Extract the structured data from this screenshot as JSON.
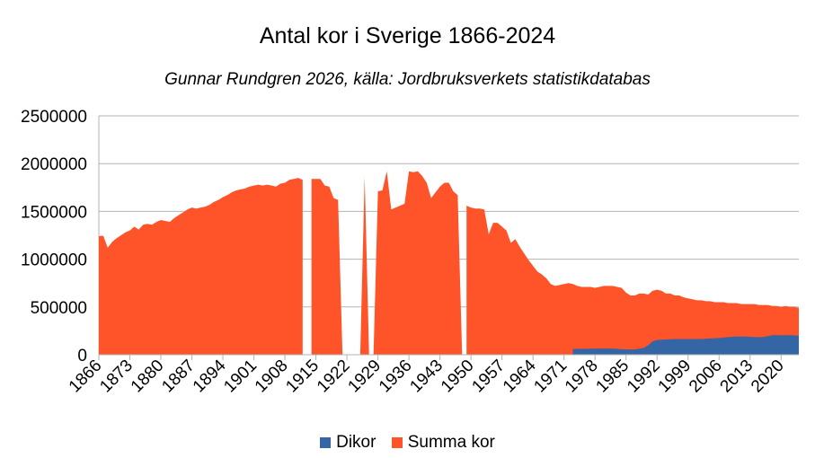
{
  "chart_data": {
    "type": "area",
    "title": "Antal kor i Sverige 1866-2024",
    "subtitle": "Gunnar Rundgren 2026, källa: Jordbruksverkets statistikdatabas",
    "xlabel": "",
    "ylabel": "",
    "ylim": [
      0,
      2500000
    ],
    "yticks": [
      "0",
      "500000",
      "1000000",
      "1500000",
      "2000000",
      "2500000"
    ],
    "xticks": [
      "1866",
      "1873",
      "1880",
      "1887",
      "1894",
      "1901",
      "1908",
      "1915",
      "1922",
      "1929",
      "1936",
      "1943",
      "1950",
      "1957",
      "1964",
      "1971",
      "1978",
      "1985",
      "1992",
      "1999",
      "2006",
      "2013",
      "2020"
    ],
    "x_range": [
      1866,
      2024
    ],
    "grid": true,
    "legend_position": "bottom",
    "series": [
      {
        "name": "Summa kor",
        "color": "#ff5429",
        "points": [
          [
            1866,
            1240000
          ],
          [
            1867,
            1245000
          ],
          [
            1868,
            1120000
          ],
          [
            1869,
            1180000
          ],
          [
            1870,
            1220000
          ],
          [
            1871,
            1250000
          ],
          [
            1872,
            1280000
          ],
          [
            1873,
            1300000
          ],
          [
            1874,
            1340000
          ],
          [
            1875,
            1310000
          ],
          [
            1876,
            1360000
          ],
          [
            1877,
            1370000
          ],
          [
            1878,
            1360000
          ],
          [
            1879,
            1390000
          ],
          [
            1880,
            1410000
          ],
          [
            1881,
            1400000
          ],
          [
            1882,
            1390000
          ],
          [
            1883,
            1430000
          ],
          [
            1884,
            1460000
          ],
          [
            1885,
            1490000
          ],
          [
            1886,
            1520000
          ],
          [
            1887,
            1540000
          ],
          [
            1888,
            1530000
          ],
          [
            1889,
            1540000
          ],
          [
            1890,
            1550000
          ],
          [
            1891,
            1570000
          ],
          [
            1892,
            1600000
          ],
          [
            1893,
            1620000
          ],
          [
            1894,
            1650000
          ],
          [
            1895,
            1670000
          ],
          [
            1896,
            1700000
          ],
          [
            1897,
            1720000
          ],
          [
            1898,
            1730000
          ],
          [
            1899,
            1740000
          ],
          [
            1900,
            1760000
          ],
          [
            1901,
            1770000
          ],
          [
            1902,
            1780000
          ],
          [
            1903,
            1770000
          ],
          [
            1904,
            1780000
          ],
          [
            1905,
            1770000
          ],
          [
            1906,
            1760000
          ],
          [
            1907,
            1790000
          ],
          [
            1908,
            1800000
          ],
          [
            1909,
            1830000
          ],
          [
            1910,
            1840000
          ],
          [
            1911,
            1850000
          ],
          [
            1912,
            1830000
          ],
          [
            1912,
            0
          ],
          [
            1913,
            0
          ],
          [
            1914,
            0
          ],
          [
            1914,
            1840000
          ],
          [
            1915,
            1840000
          ],
          [
            1916,
            1840000
          ],
          [
            1917,
            1770000
          ],
          [
            1918,
            1760000
          ],
          [
            1919,
            1640000
          ],
          [
            1920,
            1620000
          ],
          [
            1921,
            0
          ],
          [
            1925,
            0
          ],
          [
            1926,
            1860000
          ],
          [
            1927,
            0
          ],
          [
            1928,
            0
          ],
          [
            1929,
            1710000
          ],
          [
            1930,
            1720000
          ],
          [
            1931,
            1920000
          ],
          [
            1932,
            1520000
          ],
          [
            1933,
            1540000
          ],
          [
            1934,
            1560000
          ],
          [
            1935,
            1580000
          ],
          [
            1936,
            1920000
          ],
          [
            1937,
            1910000
          ],
          [
            1938,
            1920000
          ],
          [
            1939,
            1870000
          ],
          [
            1940,
            1800000
          ],
          [
            1941,
            1640000
          ],
          [
            1942,
            1700000
          ],
          [
            1943,
            1760000
          ],
          [
            1944,
            1800000
          ],
          [
            1945,
            1800000
          ],
          [
            1946,
            1710000
          ],
          [
            1947,
            1670000
          ],
          [
            1948,
            0
          ],
          [
            1949,
            0
          ],
          [
            1949,
            1560000
          ],
          [
            1950,
            1540000
          ],
          [
            1951,
            1530000
          ],
          [
            1952,
            1530000
          ],
          [
            1953,
            1520000
          ],
          [
            1954,
            1260000
          ],
          [
            1955,
            1380000
          ],
          [
            1956,
            1380000
          ],
          [
            1957,
            1340000
          ],
          [
            1958,
            1300000
          ],
          [
            1959,
            1170000
          ],
          [
            1960,
            1210000
          ],
          [
            1961,
            1130000
          ],
          [
            1962,
            1060000
          ],
          [
            1963,
            990000
          ],
          [
            1964,
            930000
          ],
          [
            1965,
            870000
          ],
          [
            1966,
            840000
          ],
          [
            1967,
            800000
          ],
          [
            1968,
            740000
          ],
          [
            1969,
            720000
          ],
          [
            1970,
            730000
          ],
          [
            1971,
            740000
          ],
          [
            1972,
            750000
          ],
          [
            1973,
            740000
          ],
          [
            1974,
            720000
          ],
          [
            1975,
            710000
          ],
          [
            1976,
            710000
          ],
          [
            1977,
            710000
          ],
          [
            1978,
            700000
          ],
          [
            1979,
            710000
          ],
          [
            1980,
            720000
          ],
          [
            1981,
            720000
          ],
          [
            1982,
            720000
          ],
          [
            1983,
            710000
          ],
          [
            1984,
            700000
          ],
          [
            1985,
            650000
          ],
          [
            1986,
            620000
          ],
          [
            1987,
            620000
          ],
          [
            1988,
            640000
          ],
          [
            1989,
            640000
          ],
          [
            1990,
            630000
          ],
          [
            1991,
            670000
          ],
          [
            1992,
            680000
          ],
          [
            1993,
            670000
          ],
          [
            1994,
            640000
          ],
          [
            1995,
            640000
          ],
          [
            1996,
            620000
          ],
          [
            1997,
            620000
          ],
          [
            1998,
            600000
          ],
          [
            1999,
            590000
          ],
          [
            2000,
            580000
          ],
          [
            2001,
            570000
          ],
          [
            2002,
            570000
          ],
          [
            2003,
            560000
          ],
          [
            2004,
            560000
          ],
          [
            2005,
            550000
          ],
          [
            2006,
            550000
          ],
          [
            2007,
            550000
          ],
          [
            2008,
            540000
          ],
          [
            2009,
            540000
          ],
          [
            2010,
            540000
          ],
          [
            2011,
            530000
          ],
          [
            2012,
            530000
          ],
          [
            2013,
            530000
          ],
          [
            2014,
            530000
          ],
          [
            2015,
            520000
          ],
          [
            2016,
            520000
          ],
          [
            2017,
            520000
          ],
          [
            2018,
            510000
          ],
          [
            2019,
            510000
          ],
          [
            2020,
            500000
          ],
          [
            2021,
            510000
          ],
          [
            2022,
            500000
          ],
          [
            2023,
            500000
          ],
          [
            2024,
            490000
          ]
        ]
      },
      {
        "name": "Dikor",
        "color": "#3465a4",
        "points": [
          [
            1973,
            0
          ],
          [
            1973,
            60000
          ],
          [
            1976,
            62000
          ],
          [
            1979,
            65000
          ],
          [
            1982,
            65000
          ],
          [
            1985,
            55000
          ],
          [
            1987,
            55000
          ],
          [
            1989,
            70000
          ],
          [
            1990,
            100000
          ],
          [
            1991,
            140000
          ],
          [
            1992,
            155000
          ],
          [
            1994,
            160000
          ],
          [
            1996,
            165000
          ],
          [
            1998,
            165000
          ],
          [
            2000,
            165000
          ],
          [
            2002,
            165000
          ],
          [
            2004,
            170000
          ],
          [
            2006,
            175000
          ],
          [
            2008,
            185000
          ],
          [
            2010,
            190000
          ],
          [
            2012,
            190000
          ],
          [
            2014,
            185000
          ],
          [
            2016,
            185000
          ],
          [
            2018,
            205000
          ],
          [
            2020,
            205000
          ],
          [
            2022,
            205000
          ],
          [
            2024,
            200000
          ]
        ]
      }
    ]
  }
}
